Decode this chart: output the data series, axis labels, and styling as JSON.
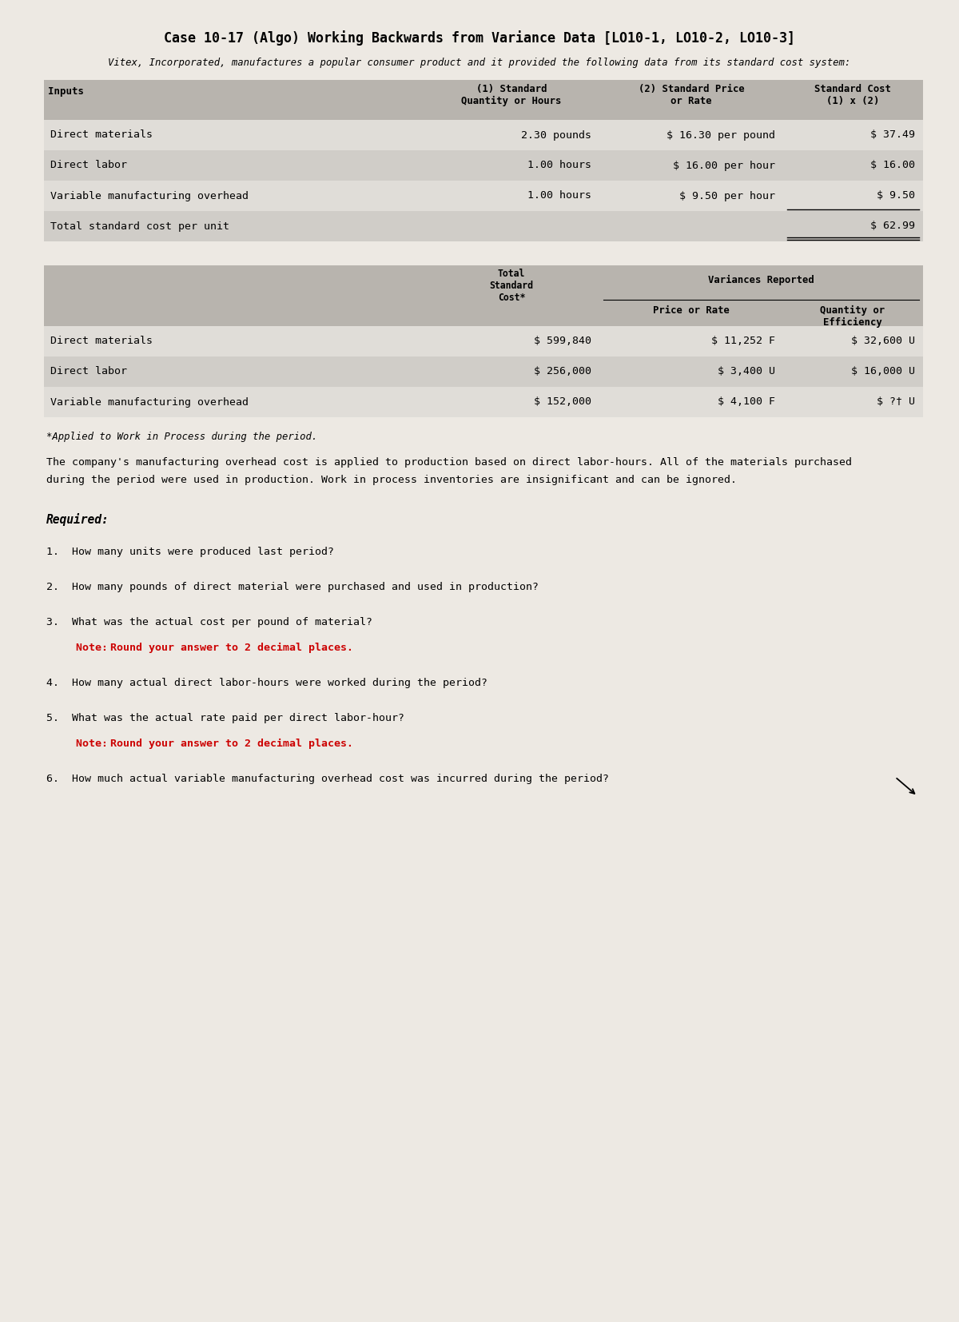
{
  "title": "Case 10-17 (Algo) Working Backwards from Variance Data [LO10-1, LO10-2, LO10-3]",
  "subtitle": "Vitex, Incorporated, manufactures a popular consumer product and it provided the following data from its standard cost system:",
  "bg_color": "#ede9e3",
  "table_header_bg": "#b8b4ae",
  "table_row_bg1": "#e0ddd8",
  "table_row_bg2": "#d0cdc8",
  "inputs_label": "Inputs",
  "col1_header": "(1) Standard\nQuantity or Hours",
  "col2_header": "(2) Standard Price\nor Rate",
  "col3_header": "Standard Cost\n(1) x (2)",
  "rows": [
    {
      "label": "Direct materials",
      "qty": "2.30 pounds",
      "price": "$ 16.30 per pound",
      "cost": "$ 37.49"
    },
    {
      "label": "Direct labor",
      "qty": "1.00 hours",
      "price": "$ 16.00 per hour",
      "cost": "$ 16.00"
    },
    {
      "label": "Variable manufacturing overhead",
      "qty": "1.00 hours",
      "price": "$ 9.50 per hour",
      "cost": "$ 9.50"
    },
    {
      "label": "Total standard cost per unit",
      "qty": "",
      "price": "",
      "cost": "$ 62.99"
    }
  ],
  "variances_header_col1": "Total\nStandard\nCost*",
  "variances_header_col2": "Price or Rate",
  "variances_header_col3": "Quantity or\nEfficiency",
  "variances_header_group": "Variances Reported",
  "variance_rows": [
    {
      "label": "Direct materials",
      "std_cost": "$ 599,840",
      "price_var": "$ 11,252 F",
      "qty_var": "$ 32,600 U"
    },
    {
      "label": "Direct labor",
      "std_cost": "$ 256,000",
      "price_var": "$ 3,400 U",
      "qty_var": "$ 16,000 U"
    },
    {
      "label": "Variable manufacturing overhead",
      "std_cost": "$ 152,000",
      "price_var": "$ 4,100 F",
      "qty_var": "$ ?† U"
    }
  ],
  "footnote": "*Applied to Work in Process during the period.",
  "paragraph1": "The company's manufacturing overhead cost is applied to production based on direct labor-hours. All of the materials purchased",
  "paragraph2": "during the period were used in production. Work in process inventories are insignificant and can be ignored.",
  "required_label": "Required:",
  "q1": "1.  How many units were produced last period?",
  "q2": "2.  How many pounds of direct material were purchased and used in production?",
  "q3": "3.  What was the actual cost per pound of material?",
  "q3_note": "     Note: Round your answer to 2 decimal places.",
  "q4": "4.  How many actual direct labor-hours were worked during the period?",
  "q5": "5.  What was the actual rate paid per direct labor-hour?",
  "q5_note": "     Note: Round your answer to 2 decimal places.",
  "q6": "6.  How much actual variable manufacturing overhead cost was incurred during the period?",
  "note_color": "#cc0000",
  "note_prefix": "Note: ",
  "note_suffix": "Round your answer to 2 decimal places."
}
